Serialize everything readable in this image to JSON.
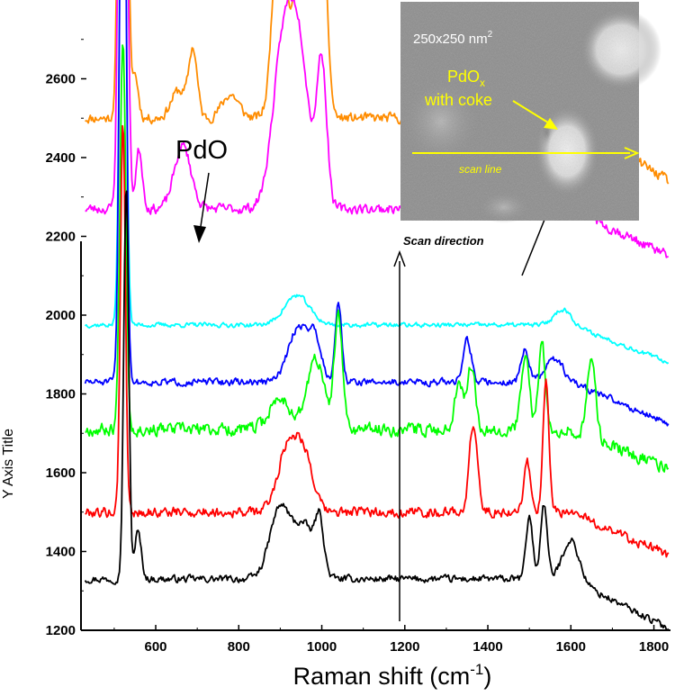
{
  "chart_data": {
    "type": "line",
    "xlabel": "Raman shift (cm",
    "xlabel_sup": "-1",
    "xlabel_close": ")",
    "ylabel": "Y Axis Title",
    "xlim": [
      420,
      1840
    ],
    "ylim": [
      1200,
      2800
    ],
    "xticks": [
      600,
      800,
      1000,
      1200,
      1400,
      1600,
      1800
    ],
    "yticks": [
      1200,
      1400,
      1600,
      1800,
      2000,
      2200,
      2400,
      2600
    ],
    "series": [
      {
        "color": "#ff8c00",
        "baseline": 2500,
        "end": 2340,
        "noise": 20,
        "seed": 11,
        "peaks": [
          [
            521,
            2300,
            8
          ],
          [
            550,
            110,
            8
          ],
          [
            655,
            70,
            18
          ],
          [
            690,
            170,
            10
          ],
          [
            780,
            60,
            20
          ],
          [
            895,
            420,
            14
          ],
          [
            935,
            220,
            30
          ],
          [
            965,
            250,
            20
          ],
          [
            1000,
            510,
            12
          ],
          [
            1630,
            130,
            20
          ]
        ]
      },
      {
        "color": "#ff00ff",
        "baseline": 2270,
        "end": 2150,
        "noise": 20,
        "seed": 23,
        "peaks": [
          [
            521,
            2330,
            8
          ],
          [
            560,
            150,
            8
          ],
          [
            665,
            160,
            20
          ],
          [
            905,
            360,
            25
          ],
          [
            945,
            380,
            25
          ],
          [
            1000,
            360,
            12
          ],
          [
            1630,
            130,
            12
          ]
        ]
      },
      {
        "color": "#00ffff",
        "baseline": 1975,
        "end": 1880,
        "noise": 9,
        "seed": 37,
        "peaks": [
          [
            521,
            1650,
            7
          ],
          [
            940,
            75,
            30
          ],
          [
            1580,
            40,
            20
          ]
        ]
      },
      {
        "color": "#0000ff",
        "baseline": 1830,
        "end": 1725,
        "noise": 14,
        "seed": 51,
        "peaks": [
          [
            521,
            1920,
            7
          ],
          [
            945,
            140,
            25
          ],
          [
            985,
            90,
            15
          ],
          [
            1040,
            200,
            8
          ],
          [
            1350,
            110,
            10
          ],
          [
            1490,
            80,
            10
          ],
          [
            1560,
            60,
            20
          ]
        ]
      },
      {
        "color": "#00ff00",
        "baseline": 1710,
        "end": 1610,
        "noise": 25,
        "seed": 67,
        "peaks": [
          [
            521,
            1000,
            7
          ],
          [
            900,
            80,
            25
          ],
          [
            985,
            180,
            20
          ],
          [
            1040,
            280,
            10
          ],
          [
            1330,
            120,
            10
          ],
          [
            1360,
            160,
            10
          ],
          [
            1490,
            180,
            10
          ],
          [
            1530,
            220,
            8
          ],
          [
            1650,
            200,
            10
          ]
        ]
      },
      {
        "color": "#ff0000",
        "baseline": 1500,
        "end": 1390,
        "noise": 20,
        "seed": 79,
        "peaks": [
          [
            521,
            1000,
            6
          ],
          [
            920,
            170,
            25
          ],
          [
            960,
            120,
            20
          ],
          [
            1365,
            220,
            10
          ],
          [
            1495,
            130,
            8
          ],
          [
            1540,
            330,
            7
          ]
        ]
      },
      {
        "color": "#000000",
        "baseline": 1330,
        "end": 1205,
        "noise": 14,
        "seed": 97,
        "peaks": [
          [
            529,
            1000,
            6
          ],
          [
            557,
            120,
            8
          ],
          [
            900,
            180,
            25
          ],
          [
            960,
            130,
            25
          ],
          [
            995,
            120,
            10
          ],
          [
            1500,
            160,
            8
          ],
          [
            1535,
            190,
            8
          ],
          [
            1600,
            100,
            20
          ]
        ]
      }
    ],
    "annotations": {
      "pdo_label": "PdO",
      "scan_direction": "Scan direction"
    }
  },
  "inset": {
    "size_label": "250x250 nm",
    "size_label_sup": "2",
    "pdox_label": "PdO",
    "pdox_sub": "x",
    "with_coke": "with coke",
    "scan_line": "scan line"
  }
}
